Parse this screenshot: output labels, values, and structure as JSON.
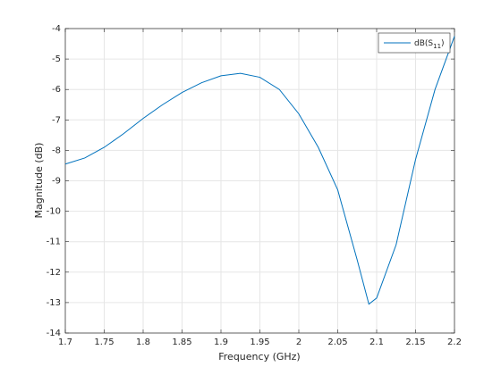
{
  "chart_data": {
    "type": "line",
    "x": [
      1.7,
      1.725,
      1.75,
      1.775,
      1.8,
      1.825,
      1.85,
      1.875,
      1.9,
      1.925,
      1.95,
      1.975,
      2.0,
      2.025,
      2.05,
      2.075,
      2.09,
      2.1,
      2.125,
      2.15,
      2.175,
      2.2
    ],
    "series": [
      {
        "name": "dB(S11)",
        "color": "#0072bd",
        "values": [
          -8.45,
          -8.25,
          -7.9,
          -7.45,
          -6.95,
          -6.5,
          -6.1,
          -5.78,
          -5.55,
          -5.47,
          -5.6,
          -6.0,
          -6.8,
          -7.9,
          -9.3,
          -11.6,
          -13.05,
          -12.85,
          -11.1,
          -8.3,
          -6.0,
          -4.25
        ]
      }
    ],
    "xlabel": "Frequency (GHz)",
    "ylabel": "Magnitude (dB)",
    "xlim": [
      1.7,
      2.2
    ],
    "xticks": [
      1.7,
      1.75,
      1.8,
      1.85,
      1.9,
      1.95,
      2,
      2.05,
      2.1,
      2.15,
      2.2
    ],
    "ylim": [
      -14,
      -4
    ],
    "yticks": [
      -14,
      -13,
      -12,
      -11,
      -10,
      -9,
      -8,
      -7,
      -6,
      -5,
      -4
    ],
    "grid": true,
    "legend": "northeast"
  }
}
